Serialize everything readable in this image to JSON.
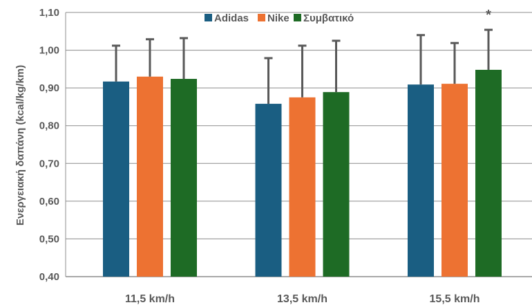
{
  "chart_data": {
    "type": "bar",
    "title": "",
    "xlabel": "",
    "ylabel": "Ενεργειακή δαπάνη (kcal/kg/km)",
    "ylim": [
      0.4,
      1.1
    ],
    "yticks": [
      "0,40",
      "0,50",
      "0,60",
      "0,70",
      "0,80",
      "0,90",
      "1,00",
      "1,10"
    ],
    "ytick_values": [
      0.4,
      0.5,
      0.6,
      0.7,
      0.8,
      0.9,
      1.0,
      1.1
    ],
    "grid": true,
    "legend_position": "top",
    "categories": [
      "11,5 km/h",
      "13,5 km/h",
      "15,5 km/h"
    ],
    "series": [
      {
        "name": "Adidas",
        "color": "#1a5e82",
        "values": [
          0.917,
          0.858,
          0.909
        ],
        "error_upper": [
          1.012,
          0.979,
          1.04
        ]
      },
      {
        "name": "Nike",
        "color": "#ed7232",
        "values": [
          0.93,
          0.875,
          0.911
        ],
        "error_upper": [
          1.029,
          1.012,
          1.019
        ]
      },
      {
        "name": "Συμβατικό",
        "color": "#1e6b25",
        "values": [
          0.924,
          0.889,
          0.948
        ],
        "error_upper": [
          1.032,
          1.025,
          1.054
        ]
      }
    ],
    "annotations": [
      {
        "text": "*",
        "category": "15,5 km/h",
        "series": "Συμβατικό"
      }
    ]
  }
}
